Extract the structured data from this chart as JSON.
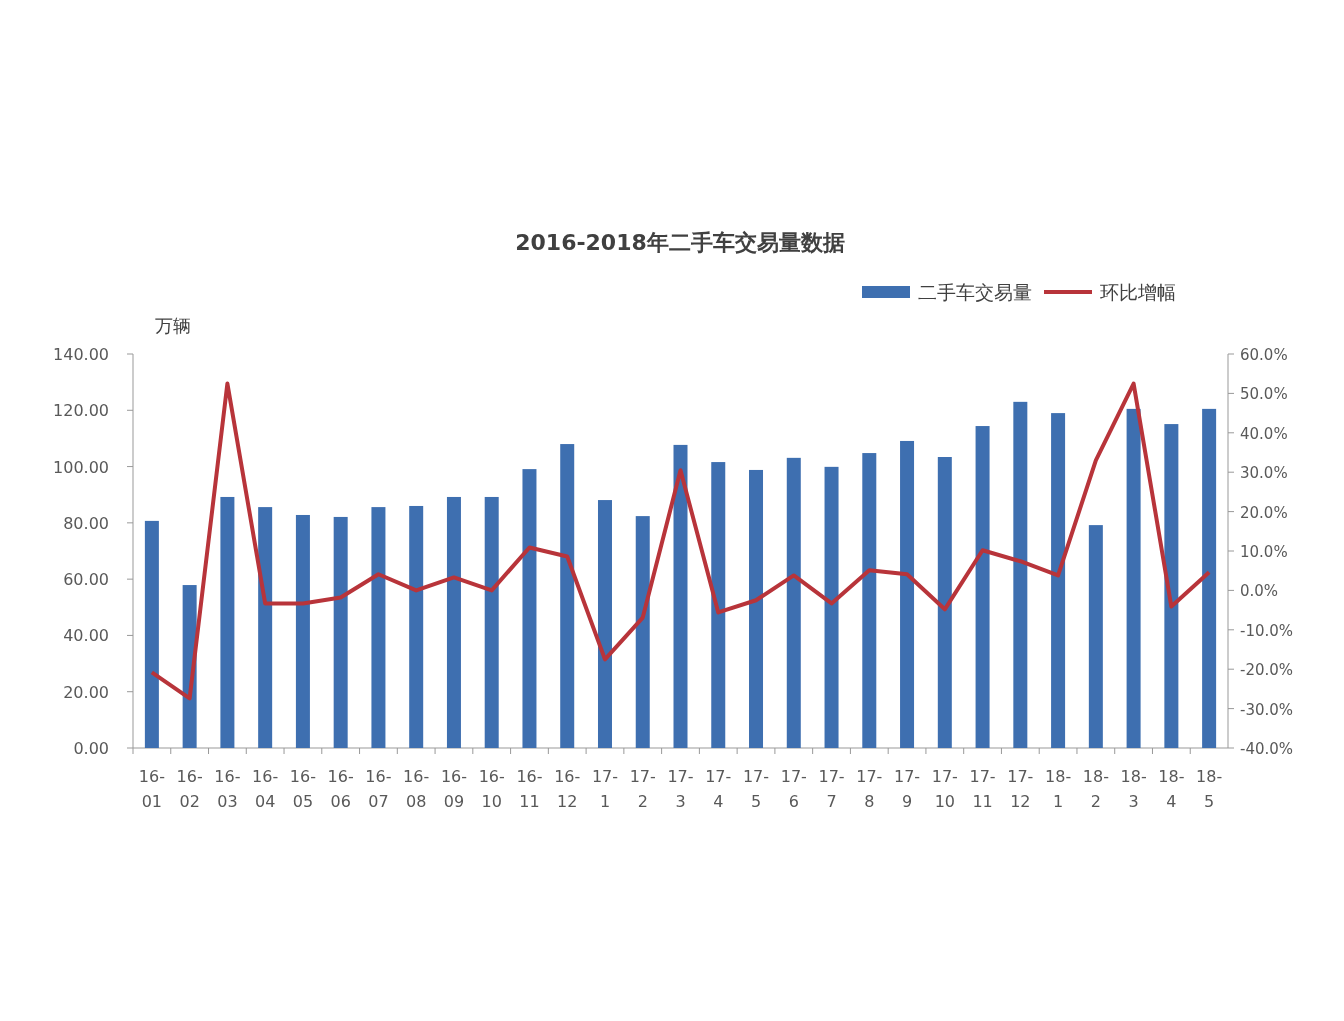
{
  "chart_data": {
    "type": "bar",
    "title": "2016-2018年二手车交易量数据",
    "ylabel": "万辆",
    "legend": "top right",
    "grid": false,
    "categories": [
      "16-01",
      "16-02",
      "16-03",
      "16-04",
      "16-05",
      "16-06",
      "16-07",
      "16-08",
      "16-09",
      "16-10",
      "16-11",
      "16-12",
      "17-1",
      "17-2",
      "17-3",
      "17-4",
      "17-5",
      "17-6",
      "17-7",
      "17-8",
      "17-9",
      "17-10",
      "17-11",
      "17-12",
      "18-1",
      "18-2",
      "18-3",
      "18-4",
      "18-5"
    ],
    "series": [
      {
        "name": "二手车交易量",
        "color": "#3e6fb0",
        "values": [
          80.7,
          57.9,
          89.2,
          85.6,
          82.8,
          82.1,
          85.6,
          86.0,
          89.2,
          89.2,
          99.1,
          108.0,
          88.1,
          82.4,
          107.7,
          101.6,
          98.8,
          103.1,
          99.9,
          104.8,
          109.1,
          103.4,
          114.4,
          123.0,
          119.0,
          79.2,
          120.5,
          115.1,
          120.5
        ]
      },
      {
        "name": "环比增幅",
        "type": "line",
        "axis": "y2",
        "color": "#b8343a",
        "values": [
          -20.8,
          -27.4,
          52.5,
          -3.3,
          -3.3,
          -1.8,
          4.1,
          0,
          3.3,
          0,
          10.9,
          8.6,
          -17.5,
          -6.9,
          30.5,
          -5.6,
          -2.5,
          3.8,
          -3.3,
          5.1,
          4.1,
          -4.8,
          10.2,
          7.4,
          3.8,
          33.0,
          52.5,
          -4.1,
          4.6
        ]
      }
    ],
    "ylim": [
      0,
      140
    ],
    "yticks": [
      {
        "value": 0,
        "label": "0.00"
      },
      {
        "value": 20,
        "label": "20.00"
      },
      {
        "value": 40,
        "label": "40.00"
      },
      {
        "value": 60,
        "label": "60.00"
      },
      {
        "value": 80,
        "label": "80.00"
      },
      {
        "value": 100,
        "label": "100.00"
      },
      {
        "value": 120,
        "label": "120.00"
      },
      {
        "value": 140,
        "label": "140.00"
      }
    ],
    "y2lim": [
      -40,
      60
    ],
    "y2ticks": [
      {
        "value": -40,
        "label": "-40.0%"
      },
      {
        "value": -30,
        "label": "-30.0%"
      },
      {
        "value": -20,
        "label": "-20.0%"
      },
      {
        "value": -10,
        "label": "-10.0%"
      },
      {
        "value": 0,
        "label": "0.0%"
      },
      {
        "value": 10,
        "label": "10.0%"
      },
      {
        "value": 20,
        "label": "20.0%"
      },
      {
        "value": 30,
        "label": "30.0%"
      },
      {
        "value": 40,
        "label": "40.0%"
      },
      {
        "value": 50,
        "label": "50.0%"
      },
      {
        "value": 60,
        "label": "60.0%"
      }
    ]
  }
}
